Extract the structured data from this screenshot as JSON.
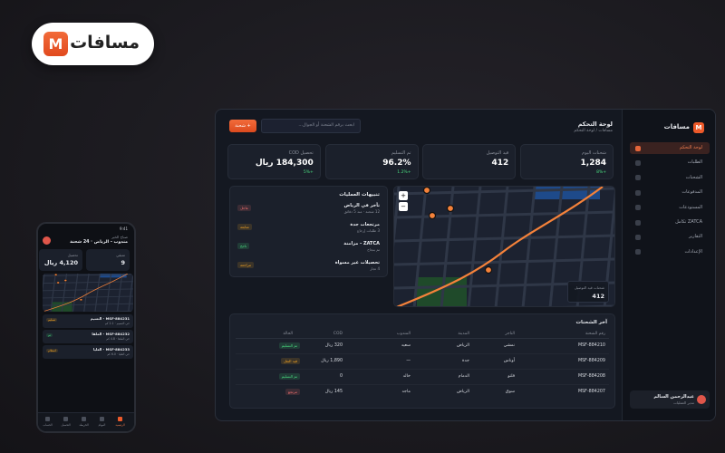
{
  "brand_badge": {
    "logo": "M",
    "name": "مسافات"
  },
  "desktop": {
    "sidebar": {
      "logo": "M",
      "name": "مسافات",
      "nav": [
        "لوحة التحكم",
        "الطلبات",
        "الشحنات",
        "المدفوعات",
        "المستودعات",
        "ZATCA تكامل",
        "التقارير",
        "الإعدادات"
      ],
      "active_index": 0,
      "user": {
        "name": "عبدالرحمن السالم",
        "role": "مدير العمليات"
      }
    },
    "header": {
      "title": "لوحة التحكم",
      "breadcrumb": "مسافات / لوحة التحكم",
      "search_placeholder": "ابحث برقم الشحنة أو الجوال...",
      "new_button": "+ شحنة"
    },
    "kpis": [
      {
        "label": "شحنات اليوم",
        "value": "1,284",
        "delta": "+8%"
      },
      {
        "label": "قيد التوصيل",
        "value": "412",
        "delta": ""
      },
      {
        "label": "تم التسليم",
        "value": "96.2%",
        "delta": "+1.2%"
      },
      {
        "label": "تحصيل COD",
        "value": "184,300 ريال",
        "delta": "+5%"
      }
    ],
    "alerts": {
      "title": "تنبيهات العمليات",
      "items": [
        {
          "title": "تأخر في الرياض",
          "detail": "12 شحنة · منذ 5 دقائق",
          "tag": "عاجل",
          "color": "#f87171"
        },
        {
          "title": "مرتجعات جدة",
          "detail": "3 طلبات إرجاع",
          "tag": "متابعة",
          "color": "#f5a524"
        },
        {
          "title": "ZATCA - مزامنة",
          "detail": "تم بنجاح",
          "tag": "ناجح",
          "color": "#4ade80"
        },
        {
          "title": "تحصيلات غير مسواة",
          "detail": "4 تجار",
          "tag": "مراجعة",
          "color": "#f5a524"
        }
      ]
    },
    "map": {
      "label": "شحنات قيد التوصيل",
      "value": "412",
      "zoom_in": "+",
      "zoom_out": "−"
    },
    "shipments": {
      "title": "آخر الشحنات",
      "columns": [
        "رقم الشحنة",
        "التاجر",
        "المدينة",
        "المندوب",
        "COD",
        "الحالة"
      ],
      "rows": [
        [
          "MSF-884210",
          "نمشي",
          "الرياض",
          "سعيد",
          "320 ريال",
          "تم التسليم"
        ],
        [
          "MSF-884209",
          "أوناس",
          "جدة",
          "—",
          "1,890 ريال",
          "قيد النقل"
        ],
        [
          "MSF-884208",
          "فلتو",
          "الدمام",
          "خالد",
          "0",
          "تم التسليم"
        ],
        [
          "MSF-884207",
          "سوق",
          "الرياض",
          "ماجد",
          "145 ريال",
          "مرتجع"
        ]
      ],
      "status_colors": [
        "#4ade80",
        "#f5a524",
        "#4ade80",
        "#f87171"
      ]
    }
  },
  "mobile": {
    "time": "9:41",
    "greeting": "صباح الخير",
    "subtitle": "مندوب - الرياض · 24 شحنة",
    "cards": [
      {
        "label": "متبقي",
        "value": "9"
      },
      {
        "label": "تحصيل",
        "value": "4,120 ريال"
      }
    ],
    "tasks": [
      {
        "id": "MSF-884231 - النسيم",
        "detail": "حي النسيم · 2.1 كم",
        "tag": "تسليم",
        "color": "#f5a524"
      },
      {
        "id": "MSF-884232 - الملقا",
        "detail": "حي الملقا · 4.8 كم",
        "tag": "تم",
        "color": "#4ade80"
      },
      {
        "id": "MSF-884233 - العليا",
        "detail": "حي العليا · 6.0 كم",
        "tag": "استلام",
        "color": "#f5a524"
      }
    ],
    "nav": [
      "الرئيسية",
      "المهام",
      "الخريطة",
      "التحصيل",
      "الحساب"
    ],
    "nav_active": 0
  }
}
